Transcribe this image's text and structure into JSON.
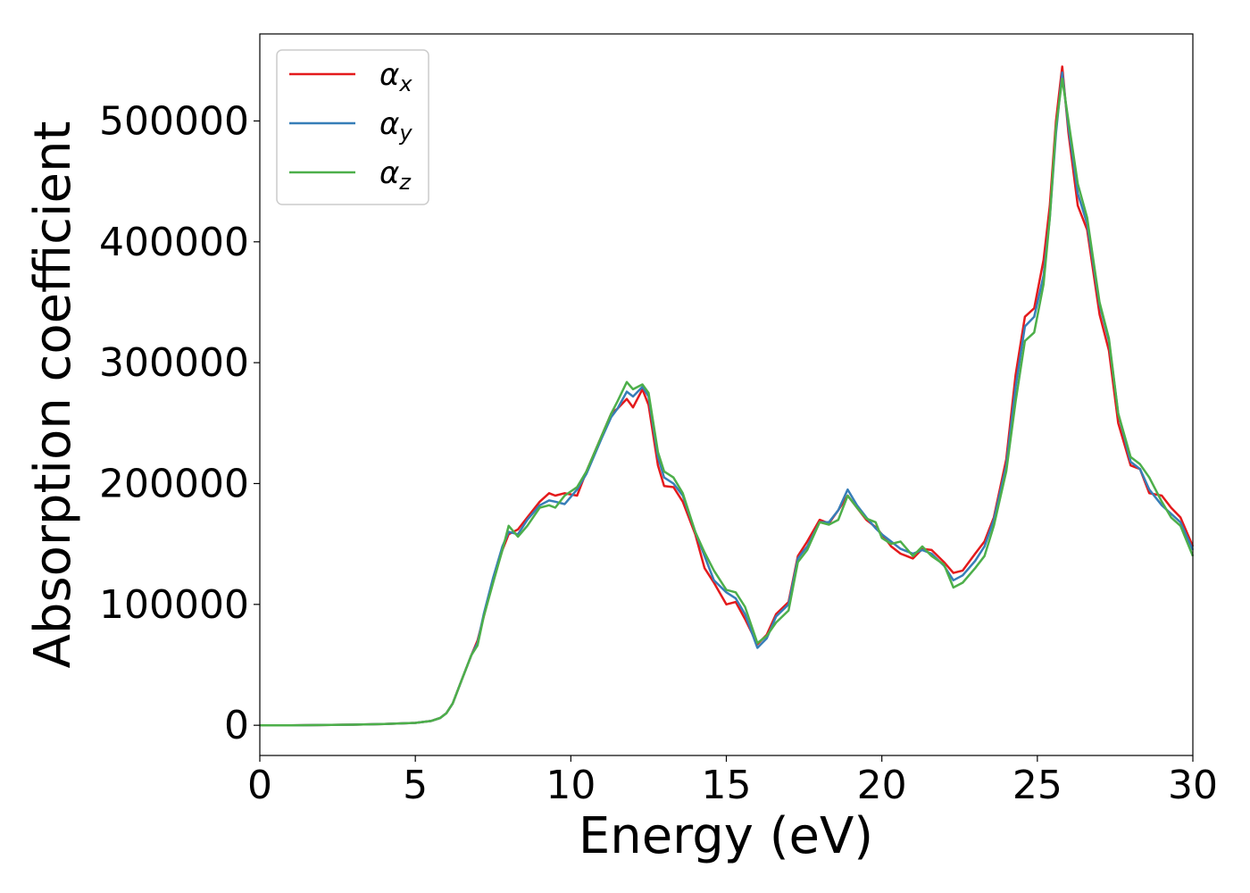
{
  "chart_data": {
    "type": "line",
    "xlabel": "Energy (eV)",
    "ylabel": "Absorption coefficient",
    "xlim": [
      0,
      30
    ],
    "ylim": [
      -25000,
      572000
    ],
    "xticks": [
      "0",
      "5",
      "10",
      "15",
      "20",
      "25",
      "30"
    ],
    "yticks": [
      "0",
      "100000",
      "200000",
      "300000",
      "400000",
      "500000"
    ],
    "legend_position": "top-left",
    "grid": false,
    "x": [
      0,
      1,
      2,
      3,
      4,
      5,
      5.5,
      5.8,
      6.0,
      6.2,
      6.5,
      6.8,
      7.0,
      7.2,
      7.5,
      7.8,
      8.0,
      8.3,
      8.6,
      9.0,
      9.3,
      9.5,
      9.8,
      10.2,
      10.5,
      11.0,
      11.3,
      11.5,
      11.8,
      12.0,
      12.3,
      12.5,
      12.8,
      13.0,
      13.3,
      13.6,
      14.0,
      14.3,
      14.6,
      15.0,
      15.3,
      15.6,
      16.0,
      16.3,
      16.6,
      17.0,
      17.3,
      17.6,
      18.0,
      18.3,
      18.6,
      18.9,
      19.2,
      19.5,
      19.8,
      20.0,
      20.3,
      20.6,
      21.0,
      21.3,
      21.6,
      22.0,
      22.3,
      22.6,
      23.0,
      23.3,
      23.6,
      24.0,
      24.3,
      24.6,
      24.9,
      25.2,
      25.4,
      25.6,
      25.8,
      26.0,
      26.3,
      26.6,
      27.0,
      27.3,
      27.6,
      28.0,
      28.3,
      28.6,
      29.0,
      29.3,
      29.6,
      30.0
    ],
    "series": [
      {
        "name": "αx",
        "color": "#e41a1c",
        "values": [
          0,
          0,
          200,
          500,
          1000,
          2000,
          3500,
          6000,
          10000,
          18000,
          38000,
          58000,
          70000,
          90000,
          120000,
          145000,
          158000,
          162000,
          172000,
          185000,
          192000,
          190000,
          192000,
          190000,
          210000,
          240000,
          258000,
          262000,
          270000,
          263000,
          278000,
          265000,
          215000,
          198000,
          197000,
          185000,
          158000,
          130000,
          118000,
          100000,
          102000,
          88000,
          67000,
          75000,
          92000,
          102000,
          140000,
          152000,
          170000,
          167000,
          178000,
          190000,
          180000,
          170000,
          164000,
          158000,
          148000,
          142000,
          138000,
          146000,
          145000,
          135000,
          126000,
          128000,
          142000,
          152000,
          172000,
          220000,
          290000,
          338000,
          345000,
          385000,
          430000,
          500000,
          545000,
          490000,
          430000,
          410000,
          340000,
          310000,
          250000,
          215000,
          212000,
          192000,
          190000,
          180000,
          172000,
          148000
        ]
      },
      {
        "name": "αy",
        "color": "#377eb8",
        "values": [
          0,
          0,
          200,
          500,
          1000,
          2000,
          3500,
          6000,
          10000,
          18000,
          38000,
          58000,
          68000,
          92000,
          122000,
          148000,
          160000,
          158000,
          170000,
          182000,
          186000,
          185000,
          183000,
          195000,
          208000,
          238000,
          255000,
          262000,
          276000,
          272000,
          280000,
          272000,
          222000,
          205000,
          200000,
          190000,
          160000,
          140000,
          120000,
          110000,
          105000,
          92000,
          64000,
          72000,
          90000,
          100000,
          138000,
          148000,
          168000,
          168000,
          178000,
          195000,
          182000,
          172000,
          163000,
          158000,
          152000,
          146000,
          142000,
          145000,
          142000,
          132000,
          120000,
          124000,
          136000,
          148000,
          170000,
          215000,
          280000,
          330000,
          338000,
          372000,
          420000,
          490000,
          540000,
          495000,
          440000,
          415000,
          348000,
          318000,
          258000,
          218000,
          212000,
          195000,
          182000,
          175000,
          168000,
          145000
        ]
      },
      {
        "name": "αz",
        "color": "#4daf4a",
        "values": [
          0,
          0,
          200,
          500,
          1000,
          2000,
          3500,
          6000,
          10000,
          18000,
          38000,
          58000,
          66000,
          90000,
          118000,
          145000,
          165000,
          156000,
          165000,
          180000,
          182000,
          180000,
          190000,
          197000,
          210000,
          240000,
          258000,
          268000,
          284000,
          278000,
          282000,
          275000,
          226000,
          210000,
          205000,
          192000,
          160000,
          143000,
          128000,
          112000,
          110000,
          98000,
          68000,
          74000,
          85000,
          95000,
          135000,
          145000,
          168000,
          166000,
          170000,
          190000,
          180000,
          171000,
          168000,
          155000,
          150000,
          152000,
          140000,
          148000,
          140000,
          133000,
          114000,
          118000,
          130000,
          140000,
          165000,
          210000,
          268000,
          318000,
          325000,
          365000,
          420000,
          495000,
          535000,
          500000,
          448000,
          420000,
          350000,
          320000,
          258000,
          222000,
          216000,
          205000,
          185000,
          172000,
          165000,
          140000
        ]
      }
    ]
  }
}
